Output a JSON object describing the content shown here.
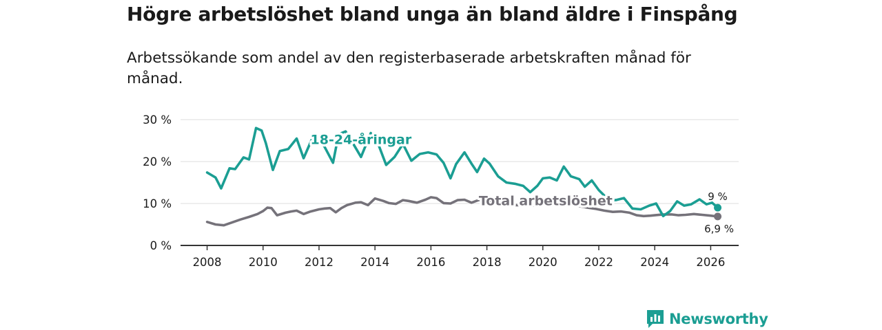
{
  "title": "Högre arbetslöshet bland unga än bland äldre i Finspång",
  "subtitle": "Arbetssökande som andel av den registerbaserade arbetskraften månad för månad.",
  "brand": {
    "name": "Newsworthy",
    "icon": "newsworthy-logo-icon"
  },
  "colors": {
    "youth": "#1b9e93",
    "total": "#75727a",
    "grid": "#dcdcdc",
    "axis": "#333333"
  },
  "chart_data": {
    "type": "line",
    "title": "Högre arbetslöshet bland unga än bland äldre i Finspång",
    "xlabel": "",
    "ylabel": "",
    "xlim": [
      2007.05,
      2027.0
    ],
    "ylim": [
      0,
      30
    ],
    "x_ticks": [
      2008,
      2010,
      2012,
      2014,
      2016,
      2018,
      2020,
      2022,
      2024,
      2026
    ],
    "y_ticks": [
      {
        "value": 0,
        "label": "0 %"
      },
      {
        "value": 10,
        "label": "10 %"
      },
      {
        "value": 20,
        "label": "20 %"
      },
      {
        "value": 30,
        "label": "30 %"
      }
    ],
    "grid": true,
    "series": [
      {
        "name": "18-24-åringar",
        "label": "18-24-åringar",
        "color": "#1b9e93",
        "end_label": "9 %",
        "label_at": [
          2013.5,
          24.2
        ],
        "points": [
          [
            2008.0,
            17.4
          ],
          [
            2008.3,
            16.2
          ],
          [
            2008.5,
            13.6
          ],
          [
            2008.8,
            18.4
          ],
          [
            2009.0,
            18.2
          ],
          [
            2009.3,
            21.0
          ],
          [
            2009.5,
            20.5
          ],
          [
            2009.75,
            28.0
          ],
          [
            2009.95,
            27.4
          ],
          [
            2010.1,
            24.4
          ],
          [
            2010.35,
            18.0
          ],
          [
            2010.6,
            22.5
          ],
          [
            2010.9,
            23.0
          ],
          [
            2011.2,
            25.5
          ],
          [
            2011.45,
            20.8
          ],
          [
            2011.75,
            25.4
          ],
          [
            2012.0,
            25.2
          ],
          [
            2012.2,
            23.5
          ],
          [
            2012.5,
            19.7
          ],
          [
            2012.7,
            26.5
          ],
          [
            2012.95,
            27.2
          ],
          [
            2013.2,
            24.5
          ],
          [
            2013.5,
            21.1
          ],
          [
            2013.85,
            26.8
          ],
          [
            2014.1,
            24.5
          ],
          [
            2014.4,
            19.2
          ],
          [
            2014.7,
            21.1
          ],
          [
            2015.0,
            24.2
          ],
          [
            2015.3,
            20.2
          ],
          [
            2015.6,
            21.8
          ],
          [
            2015.9,
            22.2
          ],
          [
            2016.2,
            21.7
          ],
          [
            2016.45,
            19.7
          ],
          [
            2016.7,
            16.0
          ],
          [
            2016.9,
            19.4
          ],
          [
            2017.2,
            22.2
          ],
          [
            2017.45,
            19.5
          ],
          [
            2017.65,
            17.5
          ],
          [
            2017.9,
            20.7
          ],
          [
            2018.1,
            19.5
          ],
          [
            2018.4,
            16.5
          ],
          [
            2018.7,
            15.0
          ],
          [
            2019.0,
            14.7
          ],
          [
            2019.3,
            14.2
          ],
          [
            2019.55,
            12.7
          ],
          [
            2019.8,
            14.2
          ],
          [
            2020.0,
            16.0
          ],
          [
            2020.25,
            16.2
          ],
          [
            2020.5,
            15.5
          ],
          [
            2020.75,
            18.8
          ],
          [
            2021.0,
            16.5
          ],
          [
            2021.3,
            15.8
          ],
          [
            2021.5,
            14.0
          ],
          [
            2021.75,
            15.5
          ],
          [
            2022.0,
            13.2
          ],
          [
            2022.3,
            11.2
          ],
          [
            2022.6,
            10.8
          ],
          [
            2022.9,
            11.3
          ],
          [
            2023.2,
            8.8
          ],
          [
            2023.5,
            8.6
          ],
          [
            2023.8,
            9.5
          ],
          [
            2024.05,
            10.0
          ],
          [
            2024.3,
            7.0
          ],
          [
            2024.55,
            8.2
          ],
          [
            2024.8,
            10.5
          ],
          [
            2025.05,
            9.5
          ],
          [
            2025.3,
            9.8
          ],
          [
            2025.6,
            11.0
          ],
          [
            2025.85,
            9.8
          ],
          [
            2026.05,
            10.2
          ],
          [
            2026.25,
            9.0
          ]
        ]
      },
      {
        "name": "Total arbetslöshet",
        "label": "Total arbetslöshet",
        "color": "#75727a",
        "end_label": "6,9 %",
        "label_at": [
          2020.1,
          9.6
        ],
        "points": [
          [
            2008.0,
            5.6
          ],
          [
            2008.3,
            5.0
          ],
          [
            2008.6,
            4.8
          ],
          [
            2008.9,
            5.5
          ],
          [
            2009.2,
            6.2
          ],
          [
            2009.5,
            6.8
          ],
          [
            2009.8,
            7.5
          ],
          [
            2010.0,
            8.2
          ],
          [
            2010.15,
            9.0
          ],
          [
            2010.3,
            8.9
          ],
          [
            2010.5,
            7.2
          ],
          [
            2010.8,
            7.8
          ],
          [
            2011.0,
            8.1
          ],
          [
            2011.2,
            8.3
          ],
          [
            2011.45,
            7.5
          ],
          [
            2011.7,
            8.1
          ],
          [
            2012.0,
            8.6
          ],
          [
            2012.2,
            8.8
          ],
          [
            2012.4,
            8.9
          ],
          [
            2012.6,
            7.9
          ],
          [
            2012.8,
            8.9
          ],
          [
            2013.0,
            9.6
          ],
          [
            2013.3,
            10.2
          ],
          [
            2013.5,
            10.3
          ],
          [
            2013.75,
            9.6
          ],
          [
            2014.0,
            11.2
          ],
          [
            2014.3,
            10.6
          ],
          [
            2014.5,
            10.1
          ],
          [
            2014.75,
            9.9
          ],
          [
            2015.0,
            10.8
          ],
          [
            2015.2,
            10.6
          ],
          [
            2015.5,
            10.2
          ],
          [
            2015.8,
            10.9
          ],
          [
            2016.0,
            11.5
          ],
          [
            2016.2,
            11.3
          ],
          [
            2016.45,
            10.1
          ],
          [
            2016.7,
            10.0
          ],
          [
            2016.95,
            10.8
          ],
          [
            2017.2,
            10.9
          ],
          [
            2017.45,
            10.2
          ],
          [
            2017.7,
            10.8
          ],
          [
            2018.0,
            10.9
          ],
          [
            2018.3,
            10.2
          ],
          [
            2018.6,
            9.8
          ],
          [
            2018.9,
            9.6
          ],
          [
            2019.2,
            9.6
          ],
          [
            2019.5,
            9.4
          ],
          [
            2019.8,
            9.6
          ],
          [
            2020.1,
            10.2
          ],
          [
            2020.4,
            10.4
          ],
          [
            2020.7,
            10.1
          ],
          [
            2021.0,
            9.8
          ],
          [
            2021.3,
            9.4
          ],
          [
            2021.6,
            9.0
          ],
          [
            2021.9,
            8.7
          ],
          [
            2022.2,
            8.3
          ],
          [
            2022.5,
            8.0
          ],
          [
            2022.8,
            8.1
          ],
          [
            2023.1,
            7.8
          ],
          [
            2023.35,
            7.2
          ],
          [
            2023.6,
            7.0
          ],
          [
            2023.85,
            7.1
          ],
          [
            2024.0,
            7.2
          ],
          [
            2024.3,
            7.4
          ],
          [
            2024.6,
            7.4
          ],
          [
            2024.85,
            7.2
          ],
          [
            2025.1,
            7.3
          ],
          [
            2025.4,
            7.5
          ],
          [
            2025.7,
            7.3
          ],
          [
            2026.0,
            7.1
          ],
          [
            2026.25,
            6.9
          ]
        ]
      }
    ]
  }
}
